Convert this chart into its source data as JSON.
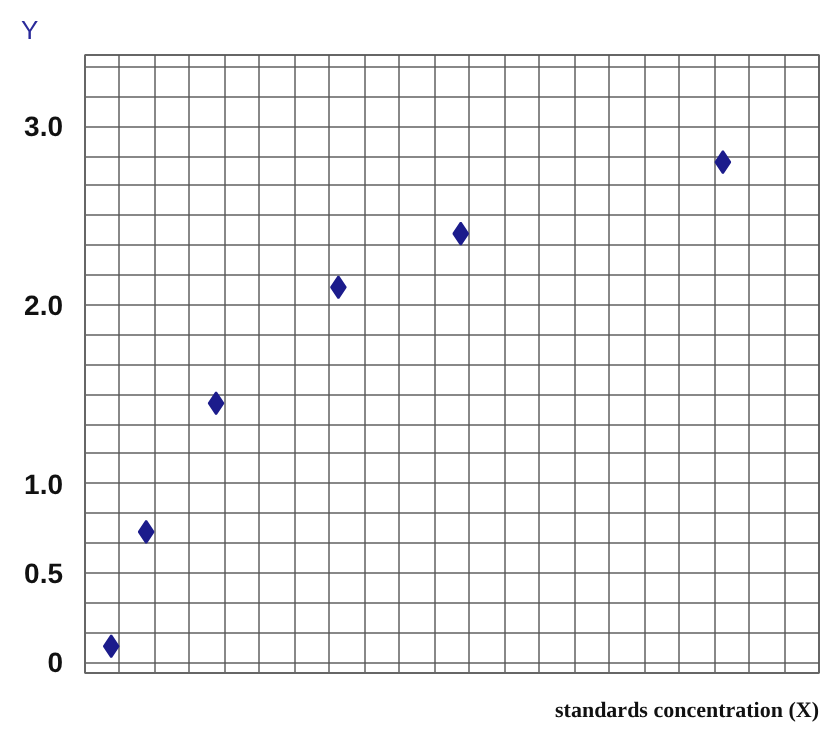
{
  "chart_data": {
    "type": "scatter",
    "xlabel": "standards concentration (X)",
    "ylabel": "Y",
    "categories": [
      null,
      null,
      null,
      null,
      null,
      null,
      null,
      null,
      null,
      null,
      null,
      null,
      null,
      null,
      null,
      null,
      null,
      null,
      null,
      null,
      null,
      null,
      null,
      null,
      null,
      null,
      null,
      null,
      null,
      null,
      null,
      null,
      null,
      null,
      null,
      null,
      null,
      null,
      null,
      null,
      null,
      null
    ],
    "series": [
      {
        "color": "#1c1c8c",
        "values": [
          null,
          0.09,
          null,
          0.73,
          null,
          null,
          null,
          1.45,
          null,
          null,
          null,
          null,
          null,
          null,
          2.1,
          null,
          null,
          null,
          null,
          null,
          null,
          2.4,
          null,
          null,
          null,
          null,
          null,
          null,
          null,
          null,
          null,
          null,
          null,
          null,
          null,
          null,
          2.8,
          null,
          null,
          null,
          null,
          null
        ]
      }
    ],
    "marker": "diamond",
    "grid": true,
    "tick_labels": "y",
    "ylim": [
      -0.06,
      3.4
    ],
    "yticks": [
      {
        "value": 0,
        "label": "0"
      },
      {
        "value": 0.167,
        "label": null
      },
      {
        "value": 0.333,
        "label": null
      },
      {
        "value": 0.5,
        "label": "0.5"
      },
      {
        "value": 0.667,
        "label": null
      },
      {
        "value": 0.833,
        "label": null
      },
      {
        "value": 1,
        "label": "1.0"
      },
      {
        "value": 1.167,
        "label": null
      },
      {
        "value": 1.333,
        "label": null
      },
      {
        "value": 1.5,
        "label": null
      },
      {
        "value": 1.667,
        "label": null
      },
      {
        "value": 1.833,
        "label": null
      },
      {
        "value": 2,
        "label": "2.0"
      },
      {
        "value": 2.167,
        "label": null
      },
      {
        "value": 2.333,
        "label": null
      },
      {
        "value": 2.5,
        "label": null
      },
      {
        "value": 2.667,
        "label": null
      },
      {
        "value": 2.833,
        "label": null
      },
      {
        "value": 3,
        "label": "3.0"
      },
      {
        "value": 3.167,
        "label": null
      },
      {
        "value": 3.333,
        "label": null
      }
    ]
  }
}
